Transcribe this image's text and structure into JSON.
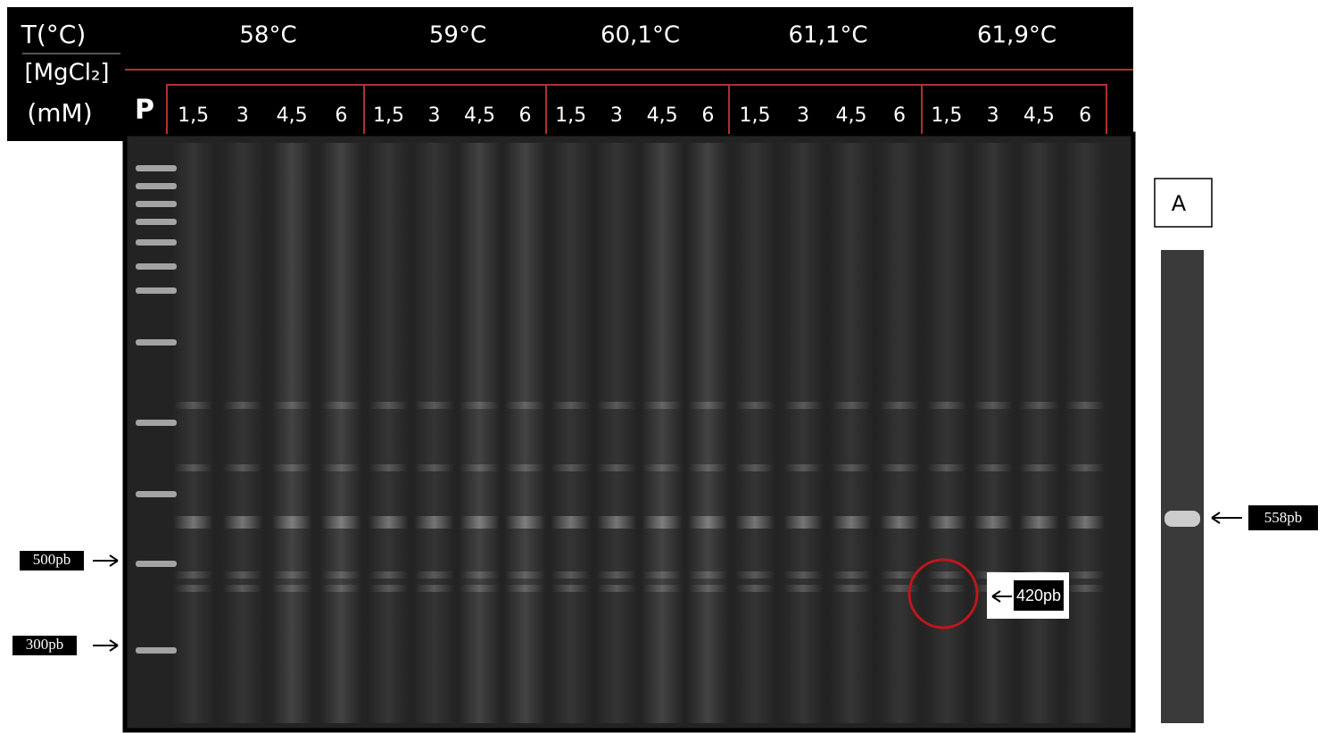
{
  "header": {
    "temp_label": "T(°C)",
    "mgcl2_label": "[MgCl₂]",
    "mm_label": "(mM)",
    "ladder_label": "P",
    "groups": [
      {
        "temperature": "58°C",
        "concentrations": [
          "1,5",
          "3",
          "4,5",
          "6"
        ]
      },
      {
        "temperature": "59°C",
        "concentrations": [
          "1,5",
          "3",
          "4,5",
          "6"
        ]
      },
      {
        "temperature": "60,1°C",
        "concentrations": [
          "1,5",
          "3",
          "4,5",
          "6"
        ]
      },
      {
        "temperature": "61,1°C",
        "concentrations": [
          "1,5",
          "3",
          "4,5",
          "6"
        ]
      },
      {
        "temperature": "61,9°C",
        "concentrations": [
          "1,5",
          "3",
          "4,5",
          "6"
        ]
      }
    ]
  },
  "markers": {
    "left": [
      "500pb",
      "300pb"
    ],
    "highlight": "420pb"
  },
  "panel": {
    "label": "A",
    "band": "558pb"
  }
}
